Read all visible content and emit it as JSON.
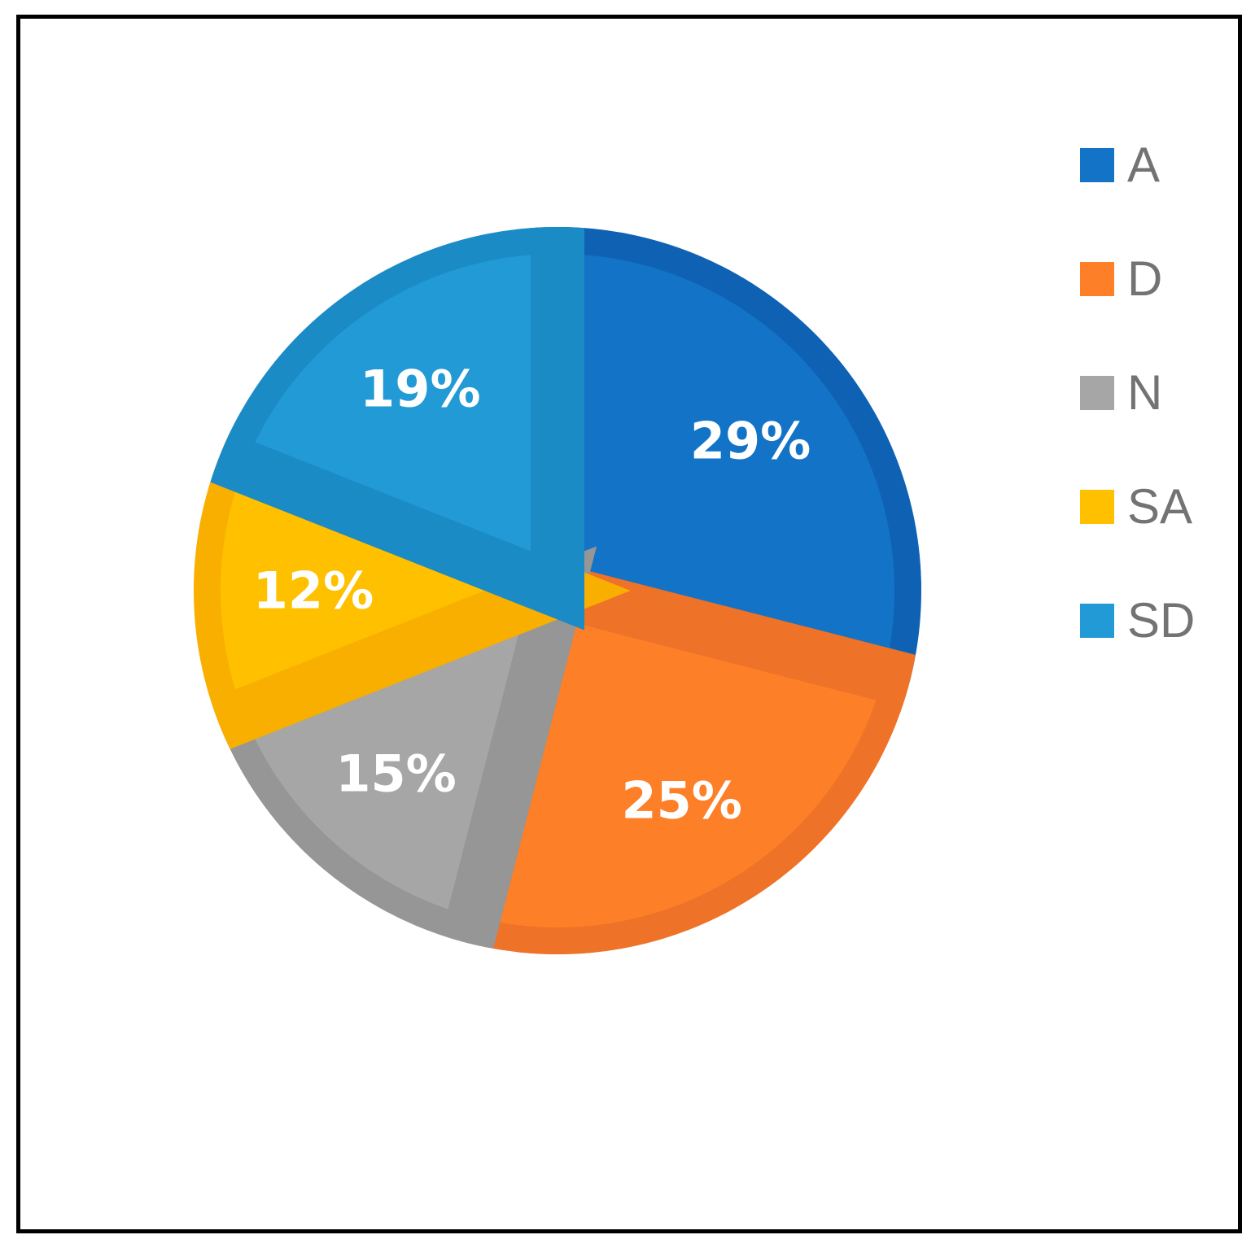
{
  "chart_data": {
    "type": "pie",
    "title": "",
    "legend_position": "right",
    "slices": [
      {
        "label": "A",
        "value": 29,
        "display": "29%",
        "color": "#1273C7",
        "edge_color": "#0F62B3"
      },
      {
        "label": "D",
        "value": 25,
        "display": "25%",
        "color": "#FD7F28",
        "edge_color": "#EE7227"
      },
      {
        "label": "N",
        "value": 15,
        "display": "15%",
        "color": "#A6A6A6",
        "edge_color": "#969696"
      },
      {
        "label": "SA",
        "value": 12,
        "display": "12%",
        "color": "#FFC000",
        "edge_color": "#F9AF00"
      },
      {
        "label": "SD",
        "value": 19,
        "display": "19%",
        "color": "#229AD6",
        "edge_color": "#1A8BC5"
      }
    ]
  }
}
